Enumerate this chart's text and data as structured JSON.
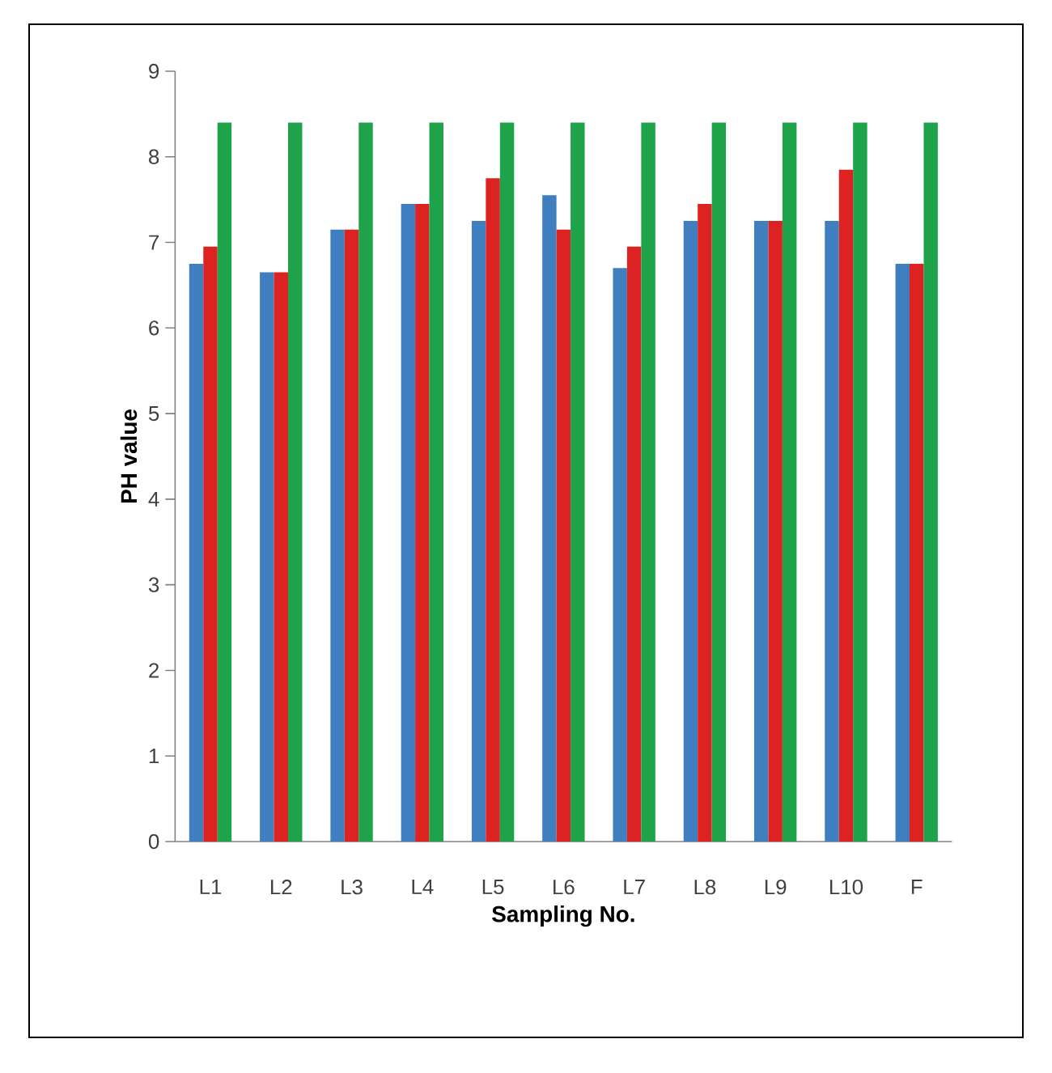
{
  "chart_data": {
    "type": "bar",
    "xlabel": "Sampling No.",
    "ylabel": "PH value",
    "categories": [
      "L1",
      "L2",
      "L3",
      "L4",
      "L5",
      "L6",
      "L7",
      "L8",
      "L9",
      "L10",
      "F"
    ],
    "series": [
      {
        "color": "#3f7fc0",
        "values": [
          6.75,
          6.65,
          7.15,
          7.45,
          7.25,
          7.55,
          6.7,
          7.25,
          7.25,
          7.25,
          6.75
        ]
      },
      {
        "color": "#dd2222",
        "values": [
          6.95,
          6.65,
          7.15,
          7.45,
          7.75,
          7.15,
          6.95,
          7.45,
          7.25,
          7.85,
          6.75
        ]
      },
      {
        "color": "#1ea34a",
        "values": [
          8.4,
          8.4,
          8.4,
          8.4,
          8.4,
          8.4,
          8.4,
          8.4,
          8.4,
          8.4,
          8.4
        ]
      }
    ],
    "ylim": [
      0,
      9
    ],
    "yticks": [
      0,
      1,
      2,
      3,
      4,
      5,
      6,
      7,
      8,
      9
    ],
    "grid": false
  }
}
